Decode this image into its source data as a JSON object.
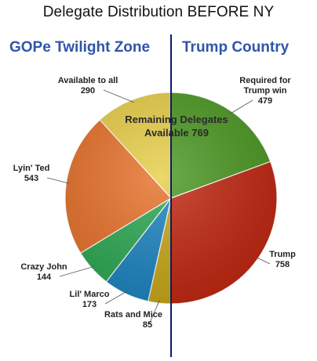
{
  "title": "Delegate Distribution BEFORE NY",
  "zones": {
    "left": "GOPe Twilight Zone",
    "right": "Trump Country"
  },
  "annotation": {
    "line1": "Remaining Delegates",
    "line2": "Available  769"
  },
  "chart_data": {
    "type": "pie",
    "slices": [
      {
        "label": "Required for\nTrump win",
        "value": 479,
        "color": "#4e9a26"
      },
      {
        "label": "Trump",
        "value": 758,
        "color": "#c22a13"
      },
      {
        "label": "Rats and Mice",
        "value": 85,
        "color": "#c9a81a"
      },
      {
        "label": "Lil' Marco",
        "value": 173,
        "color": "#1f86c2"
      },
      {
        "label": "Crazy John",
        "value": 144,
        "color": "#2eaa55"
      },
      {
        "label": "Lyin' Ted",
        "value": 543,
        "color": "#e8732d"
      },
      {
        "label": "Available to all",
        "value": 290,
        "color": "#e8cf4a"
      }
    ]
  }
}
